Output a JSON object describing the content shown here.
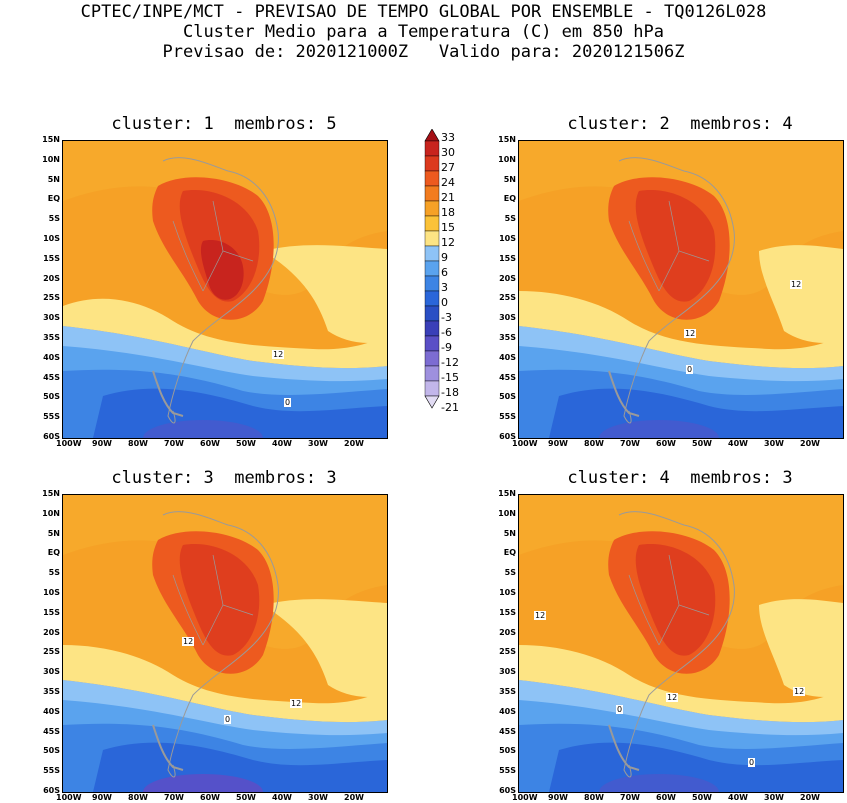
{
  "header": {
    "line1": "CPTEC/INPE/MCT - PREVISAO DE TEMPO GLOBAL POR ENSEMBLE - TQ0126L028",
    "line2": "Cluster Medio para a Temperatura (C) em 850 hPa",
    "line3": "Previsao de: 2020121000Z   Valido para: 2020121506Z"
  },
  "panels": [
    {
      "title": "cluster: 1  membros: 5",
      "labels": [
        "12",
        "0"
      ]
    },
    {
      "title": "cluster: 2  membros: 4",
      "labels": [
        "12",
        "12",
        "0"
      ]
    },
    {
      "title": "cluster: 3  membros: 3",
      "labels": [
        "12",
        "12",
        "0"
      ]
    },
    {
      "title": "cluster: 4  membros: 3",
      "labels": [
        "12",
        "12",
        "12",
        "0",
        "0"
      ]
    }
  ],
  "lat_labels": [
    "15N",
    "10N",
    "5N",
    "EQ",
    "5S",
    "10S",
    "15S",
    "20S",
    "25S",
    "30S",
    "35S",
    "40S",
    "45S",
    "50S",
    "55S",
    "60S"
  ],
  "lon_labels": [
    "100W",
    "90W",
    "80W",
    "70W",
    "60W",
    "50W",
    "40W",
    "30W",
    "20W"
  ],
  "colorbar": {
    "levels": [
      "33",
      "30",
      "27",
      "24",
      "21",
      "18",
      "15",
      "12",
      "9",
      "6",
      "3",
      "0",
      "-3",
      "-6",
      "-9",
      "-12",
      "-15",
      "-18",
      "-21"
    ],
    "colors": [
      "#a50f15",
      "#c8241e",
      "#dc3a1e",
      "#ed5a1f",
      "#f27c1f",
      "#f6a126",
      "#fbc238",
      "#fde484",
      "#8ec3f6",
      "#5aa3ee",
      "#3d84e4",
      "#2a66d9",
      "#2a4fc4",
      "#3a3fb8",
      "#5a4fc6",
      "#7c6cd2",
      "#9e90de",
      "#c2b6ea",
      "#e2dcf4"
    ]
  }
}
